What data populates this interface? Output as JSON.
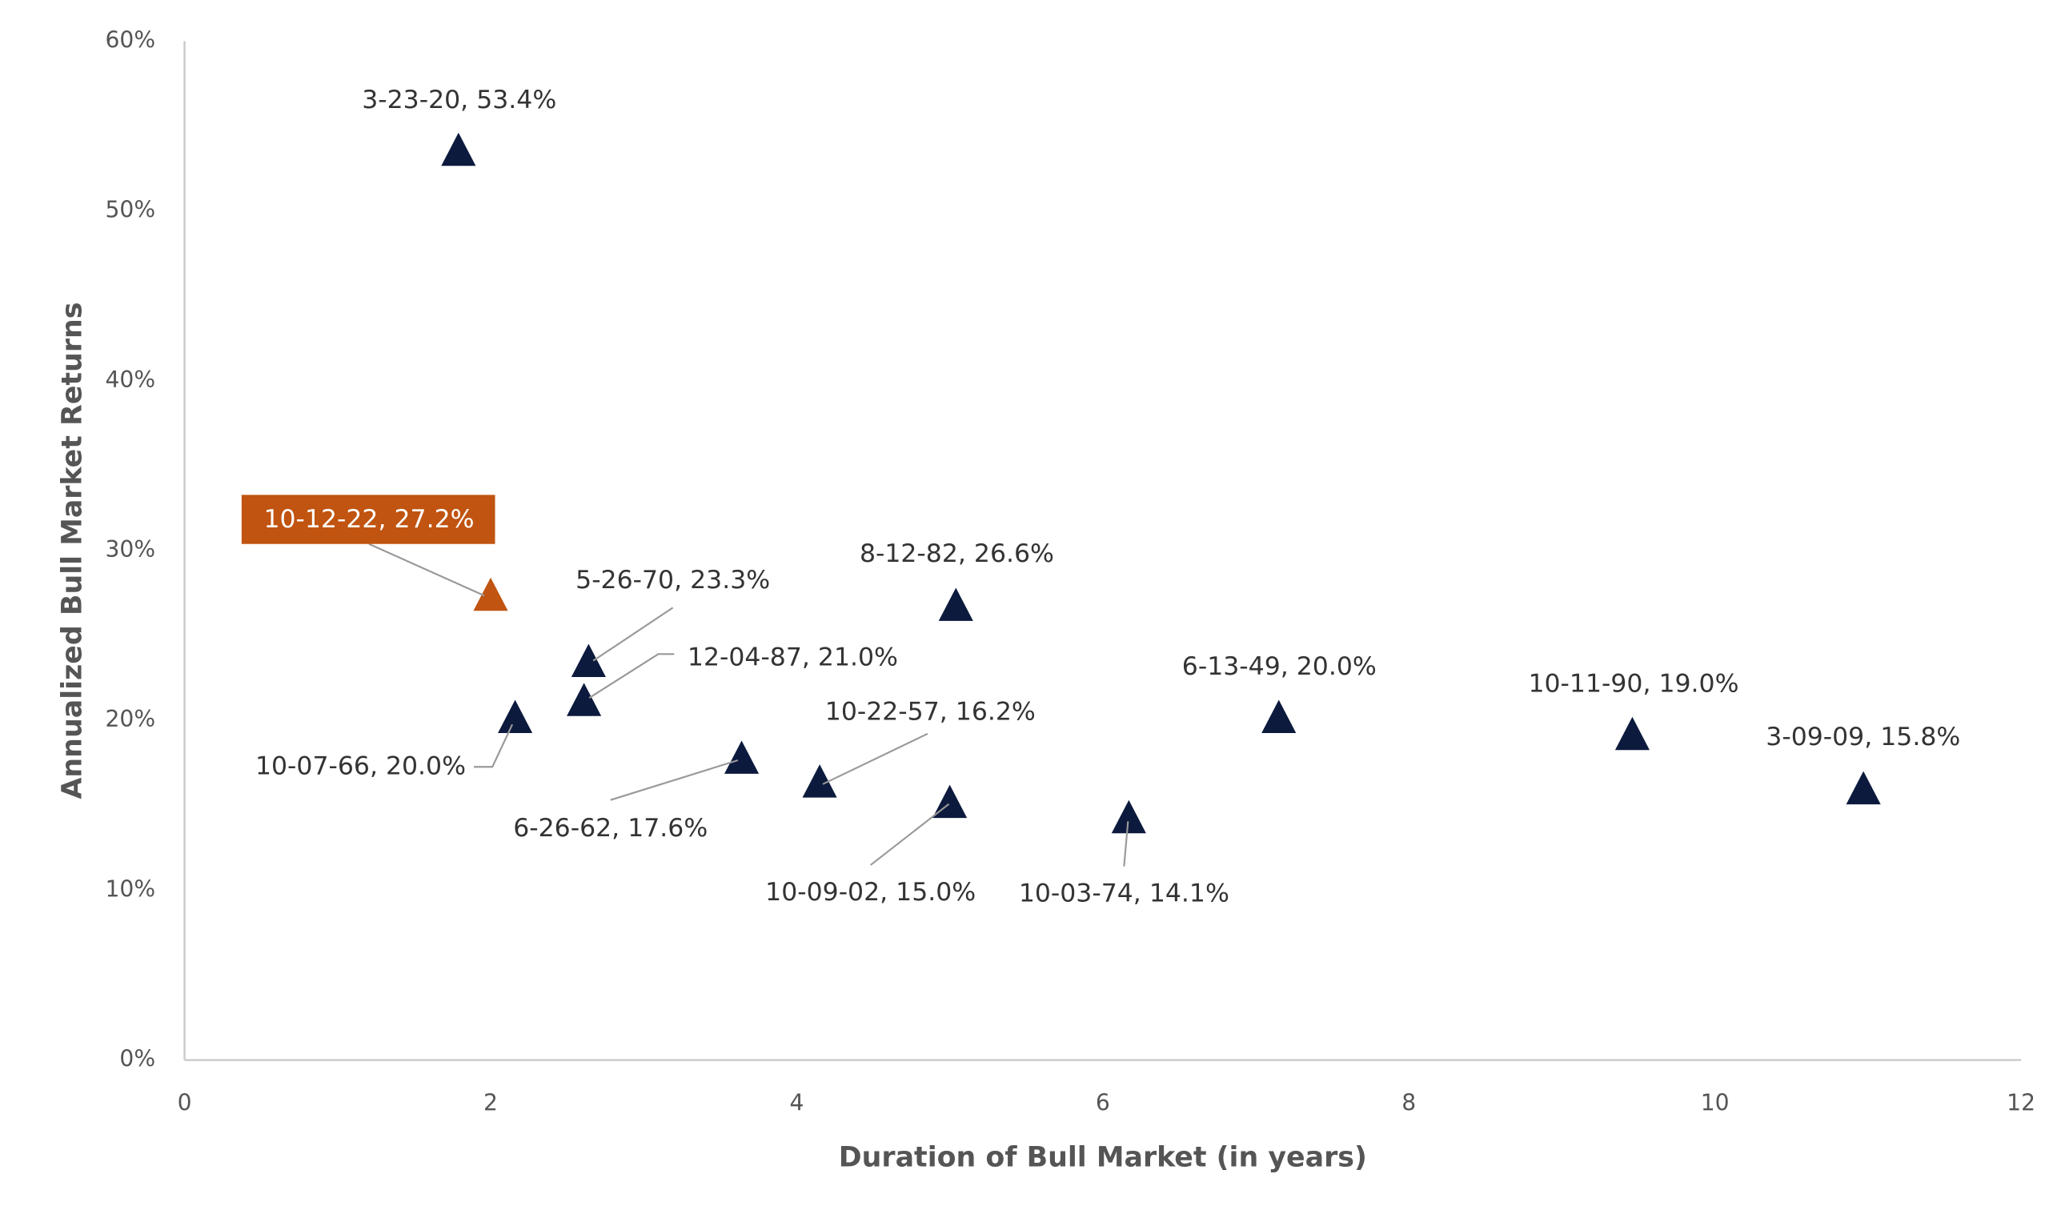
{
  "chart_data": {
    "type": "scatter",
    "x_label": "Duration of Bull Market (in years)",
    "y_label": "Annualized Bull Market Returns",
    "x": [
      1.79,
      2.0,
      2.64,
      2.61,
      2.16,
      3.64,
      4.15,
      5.0,
      5.04,
      6.17,
      7.15,
      9.46,
      10.97
    ],
    "values": [
      53.4,
      27.2,
      23.3,
      21.0,
      20.0,
      17.6,
      16.2,
      15.0,
      26.6,
      14.1,
      20.0,
      19.0,
      15.8
    ],
    "labels": [
      "3-23-20, 53.4%",
      "10-12-22, 27.2%",
      "5-26-70, 23.3%",
      "12-04-87, 21.0%",
      "10-07-66, 20.0%",
      "6-26-62, 17.6%",
      "10-22-57, 16.2%",
      "10-09-02, 15.0%",
      "8-12-82, 26.6%",
      "10-03-74, 14.1%",
      "6-13-49, 20.0%",
      "10-11-90, 19.0%",
      "3-09-09, 15.8%"
    ],
    "color": "#0c1a3d",
    "highlight": {
      "index": 1,
      "color": "#c05410"
    },
    "xlim": [
      0,
      12
    ],
    "xticks": [
      0,
      2,
      4,
      6,
      8,
      10,
      12
    ],
    "ylim": [
      0,
      60
    ],
    "yticks": [
      {
        "value": 0,
        "label": "0%"
      },
      {
        "value": 10,
        "label": "10%"
      },
      {
        "value": 20,
        "label": "20%"
      },
      {
        "value": 30,
        "label": "30%"
      },
      {
        "value": 40,
        "label": "40%"
      },
      {
        "value": 50,
        "label": "50%"
      },
      {
        "value": 60,
        "label": "60%"
      }
    ],
    "grid": false
  }
}
